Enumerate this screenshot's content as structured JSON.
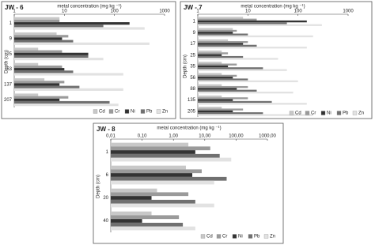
{
  "chart_data": [
    {
      "type": "bar",
      "orientation": "horizontal",
      "title": "JW - 6",
      "xlabel": "metal concentration (mg kg ⁻¹)",
      "ylabel": "Depth (cm)",
      "log_x": true,
      "legend": "lower right",
      "categories": [
        "1",
        "9",
        "25",
        "63",
        "137",
        "207"
      ],
      "xlim": [
        1,
        1000
      ],
      "xticks": [
        1,
        10,
        100,
        1000
      ],
      "series": [
        {
          "name": "Cd",
          "color": "#c8c8c8",
          "values": [
            8,
            7,
            3,
            3,
            4,
            3
          ]
        },
        {
          "name": "Cr",
          "color": "#9a9a9a",
          "values": [
            8,
            12,
            9,
            9,
            10,
            12
          ]
        },
        {
          "name": "Ni",
          "color": "#333333",
          "values": [
            200,
            9,
            30,
            10,
            8,
            8
          ]
        },
        {
          "name": "Pb",
          "color": "#707070",
          "values": [
            60,
            15,
            30,
            15,
            20,
            80
          ]
        },
        {
          "name": "Zn",
          "color": "#e2e2e2",
          "values": [
            400,
            500,
            60,
            150,
            150,
            120
          ]
        }
      ]
    },
    {
      "type": "bar",
      "orientation": "horizontal",
      "title": "JW - 7",
      "xlabel": "metal concentration (mg kg ⁻¹)",
      "ylabel": "Depth (cm)",
      "log_x": true,
      "legend": "lower right",
      "categories": [
        "1",
        "9",
        "17",
        "25",
        "35",
        "56",
        "88",
        "135",
        "205"
      ],
      "xlim": [
        1,
        1000
      ],
      "xticks": [
        1,
        10,
        100,
        1000
      ],
      "series": [
        {
          "name": "Cd",
          "color": "#c8c8c8",
          "values": [
            8,
            5,
            4,
            3,
            3,
            3,
            3,
            3,
            3
          ]
        },
        {
          "name": "Cr",
          "color": "#9a9a9a",
          "values": [
            15,
            6,
            10,
            4,
            6,
            6,
            10,
            10,
            8
          ]
        },
        {
          "name": "Ni",
          "color": "#333333",
          "values": [
            150,
            5,
            8,
            3,
            4,
            5,
            6,
            5,
            5
          ]
        },
        {
          "name": "Pb",
          "color": "#707070",
          "values": [
            60,
            10,
            15,
            8,
            20,
            10,
            15,
            30,
            20
          ]
        },
        {
          "name": "Zn",
          "color": "#e2e2e2",
          "values": [
            300,
            200,
            150,
            40,
            60,
            100,
            80,
            150,
            200
          ]
        }
      ]
    },
    {
      "type": "bar",
      "orientation": "horizontal",
      "title": "JW - 8",
      "xlabel": "metal concentration (mg kg ⁻¹)",
      "ylabel": "Depth (cm)",
      "log_x": true,
      "legend": "lower right",
      "categories": [
        "1",
        "6",
        "20",
        "40"
      ],
      "xlim": [
        0.01,
        1000
      ],
      "xticks": [
        {
          "value": 0.01,
          "label": "0,01"
        },
        {
          "value": 0.1,
          "label": "0,10"
        },
        {
          "value": 1,
          "label": "1,00"
        },
        {
          "value": 10,
          "label": "10,00"
        },
        {
          "value": 100,
          "label": "100,00"
        },
        {
          "value": 1000,
          "label": "1000,00"
        }
      ],
      "series": [
        {
          "name": "Cd",
          "color": "#c8c8c8",
          "values": [
            3,
            2.5,
            0.3,
            0.2
          ]
        },
        {
          "name": "Cr",
          "color": "#9a9a9a",
          "values": [
            15,
            8,
            3,
            1.5
          ]
        },
        {
          "name": "Ni",
          "color": "#333333",
          "values": [
            5,
            4,
            0.2,
            0.1
          ]
        },
        {
          "name": "Pb",
          "color": "#707070",
          "values": [
            30,
            50,
            5,
            2
          ]
        },
        {
          "name": "Zn",
          "color": "#e2e2e2",
          "values": [
            70,
            20,
            20,
            5
          ]
        }
      ]
    }
  ]
}
